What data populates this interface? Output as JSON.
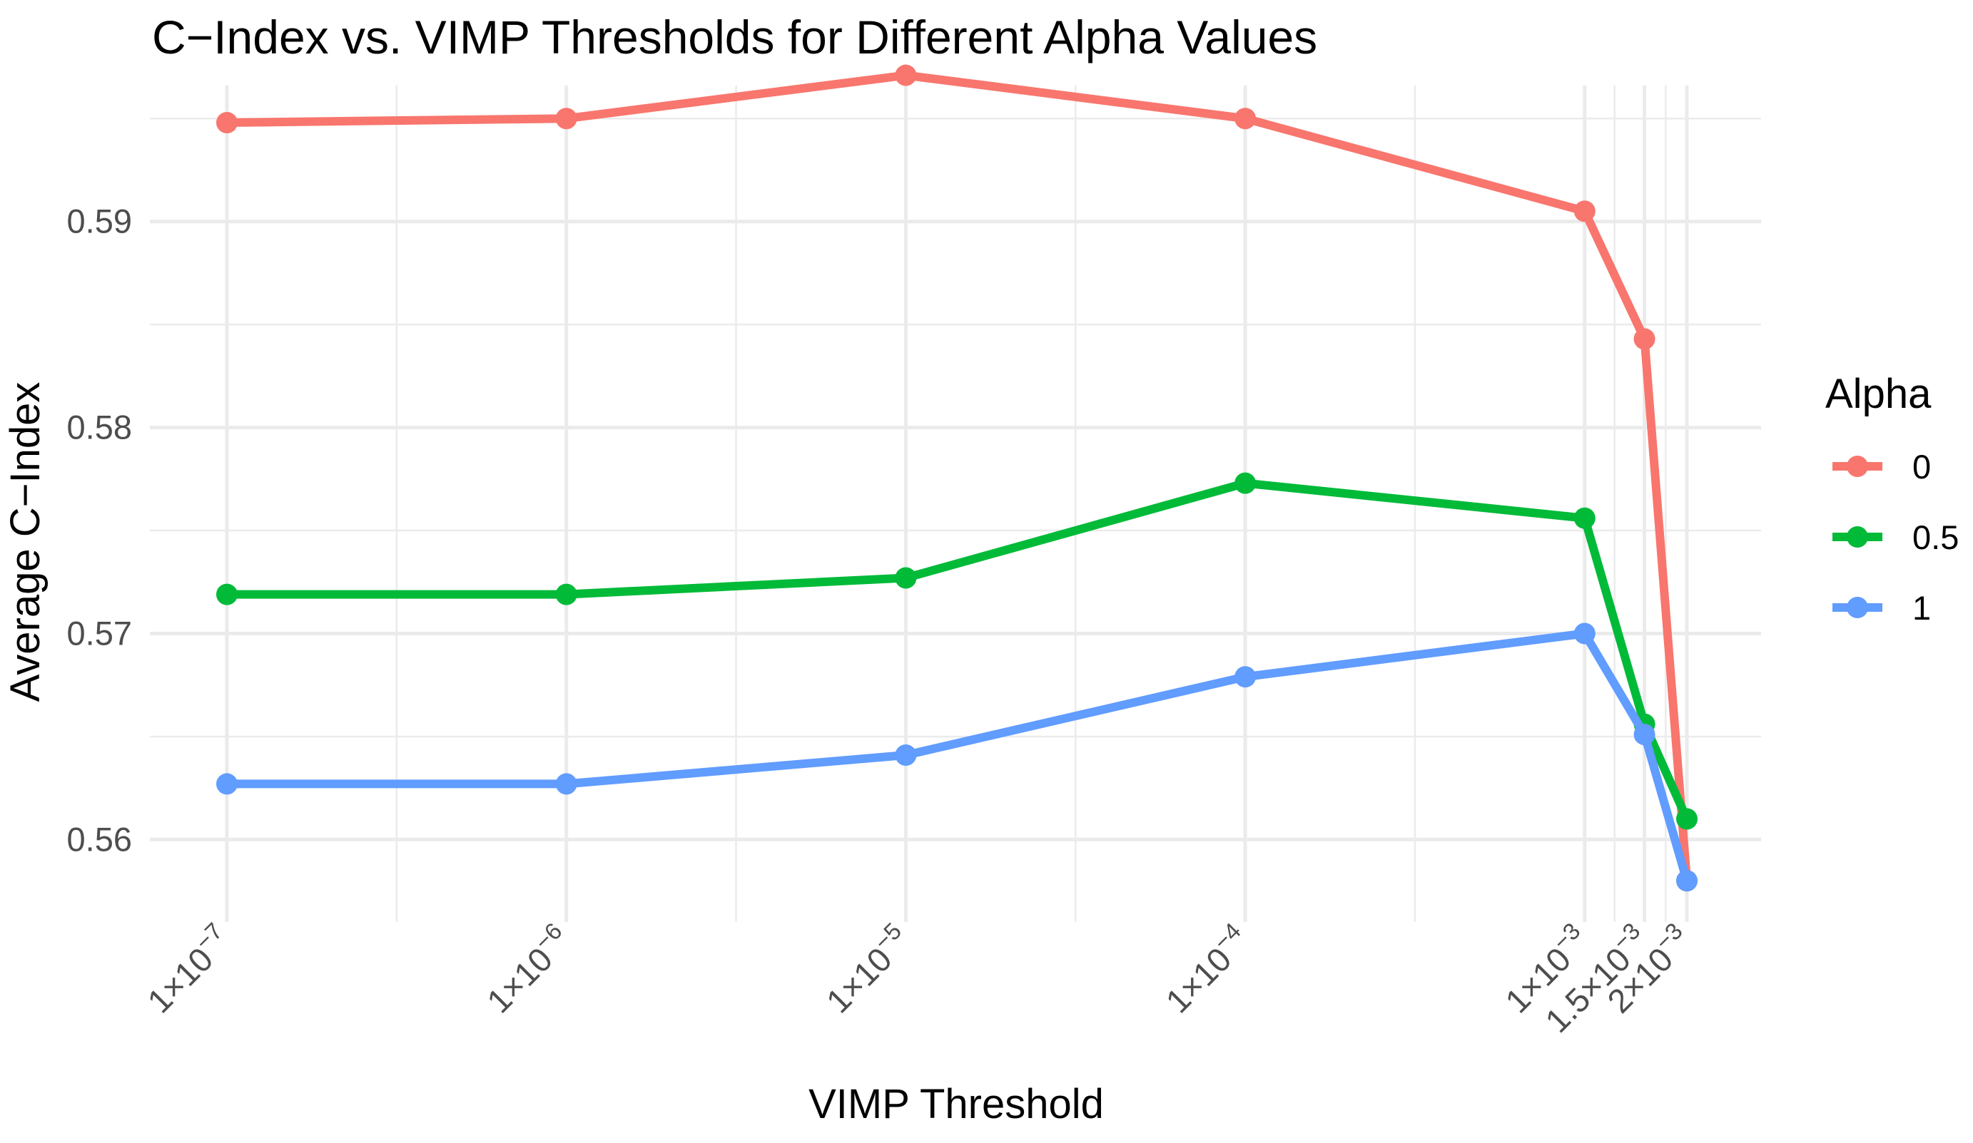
{
  "chart_data": {
    "type": "line",
    "title": "C−Index vs. VIMP Thresholds for Different Alpha Values",
    "xlabel": "VIMP Threshold",
    "ylabel": "Average C−Index",
    "x_scale": "log10",
    "x": [
      1e-07,
      1e-06,
      1e-05,
      0.0001,
      0.001,
      0.0015,
      0.002
    ],
    "x_tick_labels": [
      {
        "mant": "1×10",
        "exp": "−7"
      },
      {
        "mant": "1×10",
        "exp": "−6"
      },
      {
        "mant": "1×10",
        "exp": "−5"
      },
      {
        "mant": "1×10",
        "exp": "−4"
      },
      {
        "mant": "1×10",
        "exp": "−3"
      },
      {
        "mant": "1.5×10",
        "exp": "−3"
      },
      {
        "mant": "2×10",
        "exp": "−3"
      }
    ],
    "y_ticks": [
      0.56,
      0.57,
      0.58,
      0.59
    ],
    "y_tick_labels": [
      "0.56",
      "0.57",
      "0.58",
      "0.59"
    ],
    "ylim": [
      0.556,
      0.5966
    ],
    "grid": true,
    "legend": {
      "title": "Alpha",
      "position": "right"
    },
    "series": [
      {
        "name": "0",
        "color": "#F8766D",
        "values": [
          0.5948,
          0.595,
          0.5971,
          0.595,
          0.5905,
          0.5843,
          0.558
        ]
      },
      {
        "name": "0.5",
        "color": "#00BA38",
        "values": [
          0.5719,
          0.5719,
          0.5727,
          0.5773,
          0.5756,
          0.5656,
          0.561
        ]
      },
      {
        "name": "1",
        "color": "#619CFF",
        "values": [
          0.5627,
          0.5627,
          0.5641,
          0.5679,
          0.57,
          0.5651,
          0.558
        ]
      }
    ]
  }
}
